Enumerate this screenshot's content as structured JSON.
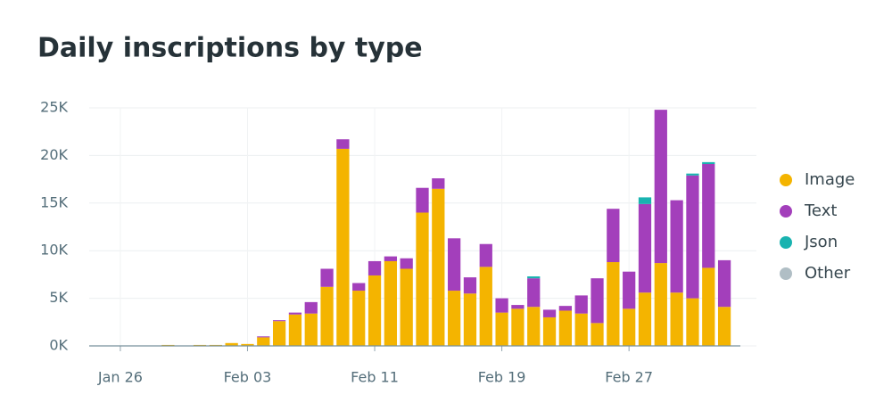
{
  "chart_data": {
    "type": "stacked_bar",
    "title": "Daily inscriptions by type",
    "categories": [
      "Jan 26",
      null,
      null,
      null,
      null,
      null,
      null,
      null,
      "Feb 03",
      null,
      null,
      null,
      null,
      null,
      null,
      null,
      "Feb 11",
      null,
      null,
      null,
      null,
      null,
      null,
      null,
      "Feb 19",
      null,
      null,
      null,
      null,
      null,
      null,
      null,
      "Feb 27",
      null,
      null,
      null,
      null,
      null,
      null
    ],
    "series": [
      {
        "name": "Image",
        "color": "#f4b400",
        "values": [
          0,
          0,
          0,
          100,
          0,
          100,
          100,
          300,
          200,
          900,
          2600,
          3300,
          3400,
          6200,
          20700,
          5800,
          7400,
          8900,
          8100,
          14000,
          16500,
          5800,
          5500,
          8300,
          3500,
          3900,
          4100,
          3000,
          3700,
          3400,
          2400,
          8800,
          3900,
          5600,
          8700,
          5600,
          5000,
          8200,
          4100
        ]
      },
      {
        "name": "Text",
        "color": "#a33fbb",
        "values": [
          0,
          0,
          0,
          0,
          0,
          0,
          0,
          0,
          0,
          100,
          100,
          200,
          1200,
          1900,
          1000,
          800,
          1500,
          500,
          1100,
          2600,
          1100,
          5500,
          1700,
          2400,
          1500,
          400,
          3000,
          800,
          500,
          1900,
          4700,
          5600,
          3900,
          9300,
          16100,
          9700,
          12900,
          10900,
          4900
        ]
      },
      {
        "name": "Json",
        "color": "#19b3b0",
        "values": [
          0,
          0,
          0,
          0,
          0,
          0,
          0,
          0,
          0,
          0,
          0,
          0,
          0,
          0,
          0,
          0,
          0,
          0,
          0,
          0,
          0,
          0,
          0,
          0,
          0,
          0,
          200,
          0,
          0,
          0,
          0,
          0,
          0,
          700,
          0,
          0,
          200,
          200,
          0
        ]
      },
      {
        "name": "Other",
        "color": "#b0bec5",
        "values": [
          0,
          0,
          0,
          0,
          0,
          0,
          0,
          0,
          0,
          0,
          0,
          0,
          0,
          0,
          0,
          0,
          0,
          0,
          0,
          0,
          0,
          0,
          0,
          0,
          0,
          0,
          0,
          0,
          0,
          0,
          0,
          0,
          0,
          0,
          0,
          0,
          0,
          0,
          0
        ]
      }
    ],
    "ylim": [
      0,
      25000
    ],
    "yticks": [
      {
        "value": 0,
        "label": "0K"
      },
      {
        "value": 5000,
        "label": "5K"
      },
      {
        "value": 10000,
        "label": "10K"
      },
      {
        "value": 15000,
        "label": "15K"
      },
      {
        "value": 20000,
        "label": "20K"
      },
      {
        "value": 25000,
        "label": "25K"
      }
    ],
    "grid": true,
    "legend": "right"
  }
}
